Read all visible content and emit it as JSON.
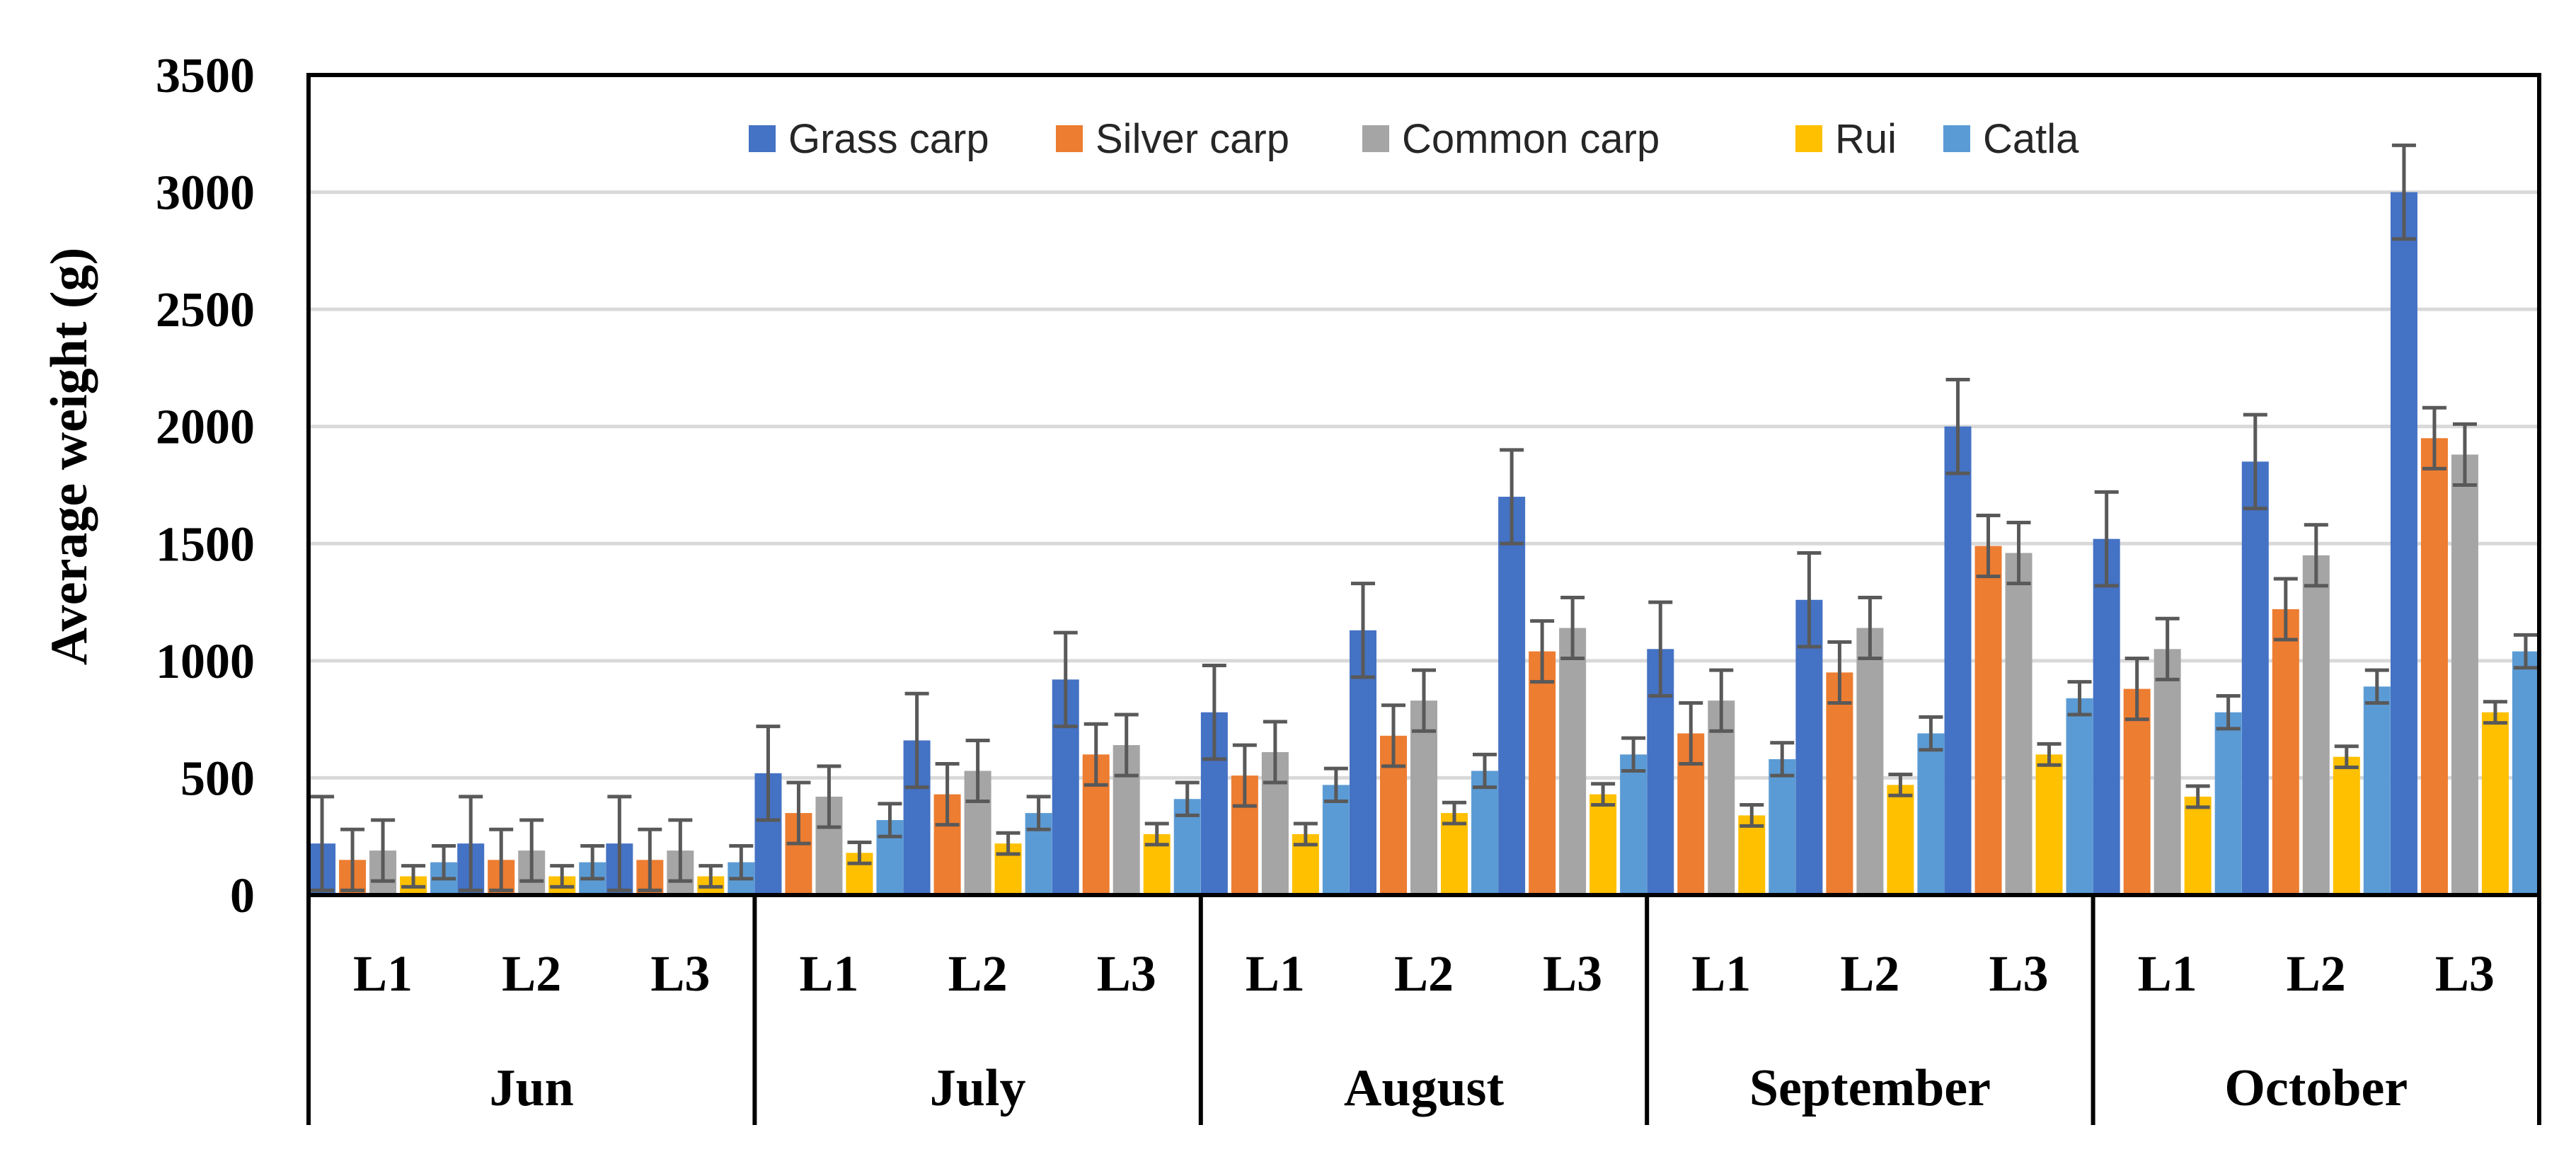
{
  "chart_data": {
    "type": "bar",
    "title": "",
    "ylabel": "Average weight (g)",
    "xlabel": "",
    "ylim": [
      0,
      3500
    ],
    "yticks": [
      0,
      500,
      1000,
      1500,
      2000,
      2500,
      3000,
      3500
    ],
    "grid": true,
    "legend_position": "top-center",
    "groups": [
      "Jun",
      "July",
      "August",
      "September",
      "October"
    ],
    "levels": [
      "L1",
      "L2",
      "L3"
    ],
    "categories": [
      "Jun L1",
      "Jun L2",
      "Jun L3",
      "July L1",
      "July L2",
      "July L3",
      "August L1",
      "August L2",
      "August L3",
      "September L1",
      "September L2",
      "September L3",
      "October L1",
      "October L2",
      "October L3"
    ],
    "series": [
      {
        "name": "Grass carp",
        "color": "#4472C4",
        "values": [
          220,
          220,
          220,
          520,
          660,
          920,
          780,
          1130,
          1700,
          1050,
          1260,
          2000,
          1520,
          1850,
          3000
        ],
        "errors": [
          200,
          200,
          200,
          200,
          200,
          200,
          200,
          200,
          200,
          200,
          200,
          200,
          200,
          200,
          200
        ]
      },
      {
        "name": "Silver carp",
        "color": "#ED7D31",
        "values": [
          150,
          150,
          150,
          350,
          430,
          600,
          510,
          680,
          1040,
          690,
          950,
          1490,
          880,
          1220,
          1950
        ],
        "errors": [
          130,
          130,
          130,
          130,
          130,
          130,
          130,
          130,
          130,
          130,
          130,
          130,
          130,
          130,
          130
        ]
      },
      {
        "name": "Common carp",
        "color": "#A5A5A5",
        "values": [
          190,
          190,
          190,
          420,
          530,
          640,
          610,
          830,
          1140,
          830,
          1140,
          1460,
          1050,
          1450,
          1880
        ],
        "errors": [
          130,
          130,
          130,
          130,
          130,
          130,
          130,
          130,
          130,
          130,
          130,
          130,
          130,
          130,
          130
        ]
      },
      {
        "name": "Rui",
        "color": "#FFC000",
        "values": [
          80,
          80,
          80,
          180,
          220,
          260,
          260,
          350,
          430,
          340,
          470,
          600,
          420,
          590,
          780
        ],
        "errors": [
          45,
          45,
          45,
          45,
          45,
          45,
          45,
          45,
          45,
          45,
          45,
          45,
          45,
          45,
          45
        ]
      },
      {
        "name": "Catla",
        "color": "#5B9BD5",
        "values": [
          140,
          140,
          140,
          320,
          350,
          410,
          470,
          530,
          600,
          580,
          690,
          840,
          780,
          890,
          1040
        ],
        "errors": [
          70,
          70,
          70,
          70,
          70,
          70,
          70,
          70,
          70,
          70,
          70,
          70,
          70,
          70,
          70
        ]
      }
    ]
  }
}
